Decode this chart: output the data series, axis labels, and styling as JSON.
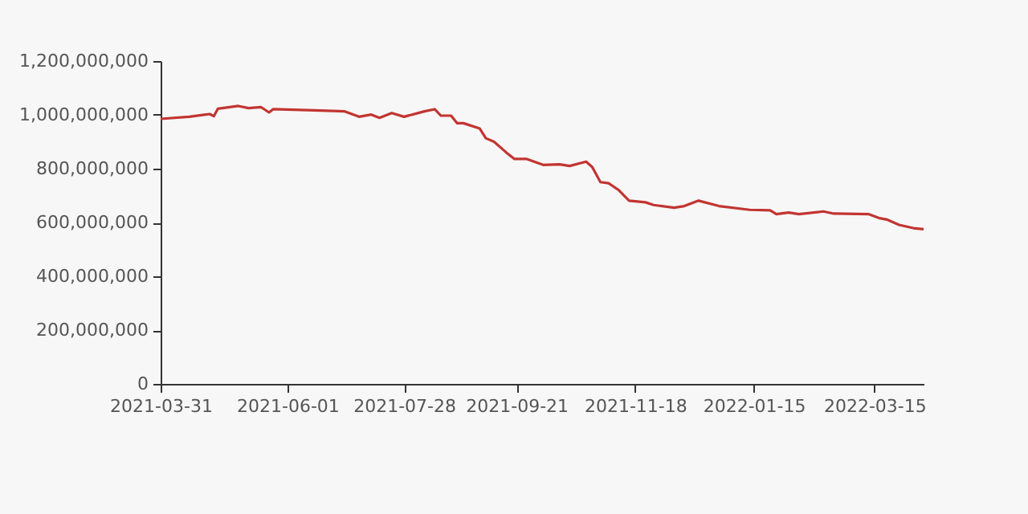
{
  "chart_data": {
    "type": "line",
    "x": [
      "2021-03-31",
      "2021-04-14",
      "2021-04-24",
      "2021-04-26",
      "2021-04-28",
      "2021-05-08",
      "2021-05-13",
      "2021-05-19",
      "2021-05-23",
      "2021-05-25",
      "2021-06-14",
      "2021-06-29",
      "2021-07-06",
      "2021-07-12",
      "2021-07-16",
      "2021-07-22",
      "2021-07-28",
      "2021-08-07",
      "2021-08-12",
      "2021-08-15",
      "2021-08-20",
      "2021-08-23",
      "2021-08-26",
      "2021-09-03",
      "2021-09-06",
      "2021-09-10",
      "2021-09-16",
      "2021-09-20",
      "2021-09-26",
      "2021-10-04",
      "2021-10-12",
      "2021-10-17",
      "2021-10-25",
      "2021-10-28",
      "2021-11-01",
      "2021-11-05",
      "2021-11-10",
      "2021-11-15",
      "2021-11-23",
      "2021-11-27",
      "2021-12-07",
      "2021-12-12",
      "2021-12-19",
      "2021-12-29",
      "2022-01-13",
      "2022-01-23",
      "2022-01-26",
      "2022-02-01",
      "2022-02-06",
      "2022-02-18",
      "2022-02-23",
      "2022-03-12",
      "2022-03-17",
      "2022-03-21",
      "2022-03-27",
      "2022-04-03",
      "2022-04-08"
    ],
    "series": [
      {
        "color": "#c23531",
        "values": [
          985000000,
          993000000,
          1003000000,
          995000000,
          1023000000,
          1033000000,
          1025000000,
          1029000000,
          1009000000,
          1021000000,
          1017000000,
          1013000000,
          993000000,
          1001000000,
          989000000,
          1007000000,
          993000000,
          1013000000,
          1021000000,
          997000000,
          997000000,
          969000000,
          969000000,
          949000000,
          913000000,
          900000000,
          860000000,
          836000000,
          836000000,
          814000000,
          816000000,
          810000000,
          826000000,
          806000000,
          750000000,
          746000000,
          720000000,
          681000000,
          675000000,
          665000000,
          655000000,
          661000000,
          681000000,
          661000000,
          647000000,
          645000000,
          631000000,
          637000000,
          631000000,
          641000000,
          633000000,
          631000000,
          617000000,
          611000000,
          591000000,
          579000000,
          575000000
        ]
      }
    ],
    "xlim": [
      "2021-03-31",
      "2022-04-08"
    ],
    "xticks": [
      "2021-03-31",
      "2021-06-01",
      "2021-07-28",
      "2021-09-21",
      "2021-11-18",
      "2022-01-15",
      "2022-03-15"
    ],
    "ylim": [
      0,
      1200000000
    ],
    "yticks": [
      0,
      {
        "value": 200000000,
        "label": "200,000,000"
      },
      {
        "value": 400000000,
        "label": "400,000,000"
      },
      {
        "value": 600000000,
        "label": "600,000,000"
      },
      {
        "value": 800000000,
        "label": "800,000,000"
      },
      {
        "value": 1000000000,
        "label": "1,000,000,000"
      },
      {
        "value": 1200000000,
        "label": "1,200,000,000"
      }
    ],
    "grid": false,
    "legend": false,
    "marker": "none",
    "line_style": "solid"
  }
}
